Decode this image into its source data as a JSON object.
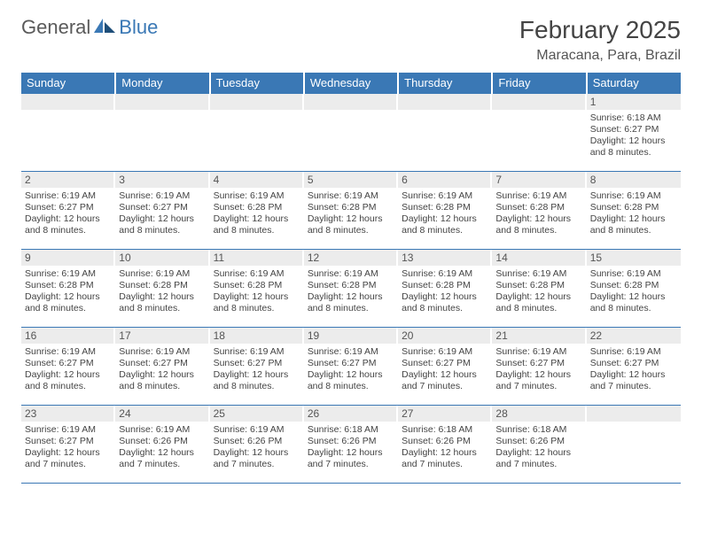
{
  "logo": {
    "general": "General",
    "blue": "Blue"
  },
  "title": "February 2025",
  "location": "Maracana, Para, Brazil",
  "colors": {
    "header_bg": "#3a78b5",
    "header_text": "#ffffff",
    "daynum_bg": "#ececec",
    "border": "#3a78b5",
    "body_text": "#444444"
  },
  "weekdays": [
    "Sunday",
    "Monday",
    "Tuesday",
    "Wednesday",
    "Thursday",
    "Friday",
    "Saturday"
  ],
  "weeks": [
    [
      {
        "empty": true
      },
      {
        "empty": true
      },
      {
        "empty": true
      },
      {
        "empty": true
      },
      {
        "empty": true
      },
      {
        "empty": true
      },
      {
        "num": "1",
        "sunrise": "Sunrise: 6:18 AM",
        "sunset": "Sunset: 6:27 PM",
        "daylight": "Daylight: 12 hours and 8 minutes."
      }
    ],
    [
      {
        "num": "2",
        "sunrise": "Sunrise: 6:19 AM",
        "sunset": "Sunset: 6:27 PM",
        "daylight": "Daylight: 12 hours and 8 minutes."
      },
      {
        "num": "3",
        "sunrise": "Sunrise: 6:19 AM",
        "sunset": "Sunset: 6:27 PM",
        "daylight": "Daylight: 12 hours and 8 minutes."
      },
      {
        "num": "4",
        "sunrise": "Sunrise: 6:19 AM",
        "sunset": "Sunset: 6:28 PM",
        "daylight": "Daylight: 12 hours and 8 minutes."
      },
      {
        "num": "5",
        "sunrise": "Sunrise: 6:19 AM",
        "sunset": "Sunset: 6:28 PM",
        "daylight": "Daylight: 12 hours and 8 minutes."
      },
      {
        "num": "6",
        "sunrise": "Sunrise: 6:19 AM",
        "sunset": "Sunset: 6:28 PM",
        "daylight": "Daylight: 12 hours and 8 minutes."
      },
      {
        "num": "7",
        "sunrise": "Sunrise: 6:19 AM",
        "sunset": "Sunset: 6:28 PM",
        "daylight": "Daylight: 12 hours and 8 minutes."
      },
      {
        "num": "8",
        "sunrise": "Sunrise: 6:19 AM",
        "sunset": "Sunset: 6:28 PM",
        "daylight": "Daylight: 12 hours and 8 minutes."
      }
    ],
    [
      {
        "num": "9",
        "sunrise": "Sunrise: 6:19 AM",
        "sunset": "Sunset: 6:28 PM",
        "daylight": "Daylight: 12 hours and 8 minutes."
      },
      {
        "num": "10",
        "sunrise": "Sunrise: 6:19 AM",
        "sunset": "Sunset: 6:28 PM",
        "daylight": "Daylight: 12 hours and 8 minutes."
      },
      {
        "num": "11",
        "sunrise": "Sunrise: 6:19 AM",
        "sunset": "Sunset: 6:28 PM",
        "daylight": "Daylight: 12 hours and 8 minutes."
      },
      {
        "num": "12",
        "sunrise": "Sunrise: 6:19 AM",
        "sunset": "Sunset: 6:28 PM",
        "daylight": "Daylight: 12 hours and 8 minutes."
      },
      {
        "num": "13",
        "sunrise": "Sunrise: 6:19 AM",
        "sunset": "Sunset: 6:28 PM",
        "daylight": "Daylight: 12 hours and 8 minutes."
      },
      {
        "num": "14",
        "sunrise": "Sunrise: 6:19 AM",
        "sunset": "Sunset: 6:28 PM",
        "daylight": "Daylight: 12 hours and 8 minutes."
      },
      {
        "num": "15",
        "sunrise": "Sunrise: 6:19 AM",
        "sunset": "Sunset: 6:28 PM",
        "daylight": "Daylight: 12 hours and 8 minutes."
      }
    ],
    [
      {
        "num": "16",
        "sunrise": "Sunrise: 6:19 AM",
        "sunset": "Sunset: 6:27 PM",
        "daylight": "Daylight: 12 hours and 8 minutes."
      },
      {
        "num": "17",
        "sunrise": "Sunrise: 6:19 AM",
        "sunset": "Sunset: 6:27 PM",
        "daylight": "Daylight: 12 hours and 8 minutes."
      },
      {
        "num": "18",
        "sunrise": "Sunrise: 6:19 AM",
        "sunset": "Sunset: 6:27 PM",
        "daylight": "Daylight: 12 hours and 8 minutes."
      },
      {
        "num": "19",
        "sunrise": "Sunrise: 6:19 AM",
        "sunset": "Sunset: 6:27 PM",
        "daylight": "Daylight: 12 hours and 8 minutes."
      },
      {
        "num": "20",
        "sunrise": "Sunrise: 6:19 AM",
        "sunset": "Sunset: 6:27 PM",
        "daylight": "Daylight: 12 hours and 7 minutes."
      },
      {
        "num": "21",
        "sunrise": "Sunrise: 6:19 AM",
        "sunset": "Sunset: 6:27 PM",
        "daylight": "Daylight: 12 hours and 7 minutes."
      },
      {
        "num": "22",
        "sunrise": "Sunrise: 6:19 AM",
        "sunset": "Sunset: 6:27 PM",
        "daylight": "Daylight: 12 hours and 7 minutes."
      }
    ],
    [
      {
        "num": "23",
        "sunrise": "Sunrise: 6:19 AM",
        "sunset": "Sunset: 6:27 PM",
        "daylight": "Daylight: 12 hours and 7 minutes."
      },
      {
        "num": "24",
        "sunrise": "Sunrise: 6:19 AM",
        "sunset": "Sunset: 6:26 PM",
        "daylight": "Daylight: 12 hours and 7 minutes."
      },
      {
        "num": "25",
        "sunrise": "Sunrise: 6:19 AM",
        "sunset": "Sunset: 6:26 PM",
        "daylight": "Daylight: 12 hours and 7 minutes."
      },
      {
        "num": "26",
        "sunrise": "Sunrise: 6:18 AM",
        "sunset": "Sunset: 6:26 PM",
        "daylight": "Daylight: 12 hours and 7 minutes."
      },
      {
        "num": "27",
        "sunrise": "Sunrise: 6:18 AM",
        "sunset": "Sunset: 6:26 PM",
        "daylight": "Daylight: 12 hours and 7 minutes."
      },
      {
        "num": "28",
        "sunrise": "Sunrise: 6:18 AM",
        "sunset": "Sunset: 6:26 PM",
        "daylight": "Daylight: 12 hours and 7 minutes."
      },
      {
        "empty": true
      }
    ]
  ]
}
